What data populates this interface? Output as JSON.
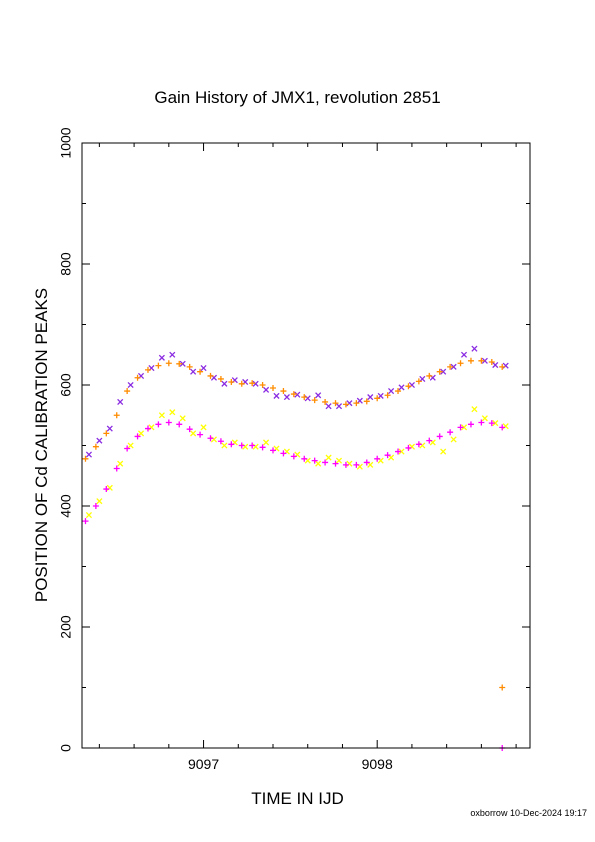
{
  "footer": "oxborrow 10-Dec-2024 19:17",
  "chart_data": {
    "type": "scatter",
    "title": "Gain History of JMX1, revolution 2851",
    "xlabel": "TIME IN IJD",
    "ylabel": "POSITION OF Cd CALIBRATION PEAKS",
    "xlim": [
      9096.3,
      9098.88
    ],
    "ylim": [
      0,
      1000
    ],
    "x_ticks": [
      9097,
      9098
    ],
    "y_ticks": [
      0,
      200,
      400,
      600,
      800,
      1000
    ],
    "grid": false,
    "legend": "none",
    "series": [
      {
        "marker": "x",
        "color": "#8a2be2",
        "x": [
          9096.34,
          9096.4,
          9096.46,
          9096.52,
          9096.58,
          9096.64,
          9096.7,
          9096.76,
          9096.82,
          9096.88,
          9096.94,
          9097.0,
          9097.06,
          9097.12,
          9097.18,
          9097.24,
          9097.3,
          9097.36,
          9097.42,
          9097.48,
          9097.54,
          9097.6,
          9097.66,
          9097.72,
          9097.78,
          9097.84,
          9097.9,
          9097.96,
          9098.02,
          9098.08,
          9098.14,
          9098.2,
          9098.26,
          9098.32,
          9098.38,
          9098.44,
          9098.5,
          9098.56,
          9098.62,
          9098.68,
          9098.74
        ],
        "y": [
          485,
          508,
          528,
          572,
          600,
          615,
          628,
          645,
          650,
          635,
          622,
          628,
          612,
          602,
          608,
          605,
          602,
          592,
          582,
          580,
          584,
          578,
          583,
          565,
          565,
          570,
          574,
          580,
          582,
          590,
          596,
          600,
          610,
          612,
          622,
          630,
          650,
          660,
          640,
          633,
          632
        ]
      },
      {
        "marker": "+",
        "color": "#ff8c00",
        "x": [
          9096.32,
          9096.38,
          9096.44,
          9096.5,
          9096.56,
          9096.62,
          9096.68,
          9096.74,
          9096.8,
          9096.86,
          9096.92,
          9096.98,
          9097.04,
          9097.1,
          9097.16,
          9097.22,
          9097.28,
          9097.34,
          9097.4,
          9097.46,
          9097.52,
          9097.58,
          9097.64,
          9097.7,
          9097.76,
          9097.82,
          9097.88,
          9097.94,
          9098.0,
          9098.06,
          9098.12,
          9098.18,
          9098.24,
          9098.3,
          9098.36,
          9098.42,
          9098.48,
          9098.54,
          9098.6,
          9098.66,
          9098.72
        ],
        "y": [
          478,
          498,
          520,
          550,
          590,
          612,
          625,
          632,
          636,
          635,
          630,
          622,
          615,
          610,
          605,
          602,
          603,
          600,
          595,
          590,
          585,
          580,
          575,
          572,
          570,
          568,
          570,
          573,
          578,
          583,
          590,
          598,
          606,
          615,
          622,
          630,
          636,
          640,
          640,
          638,
          630
        ]
      },
      {
        "marker": "x",
        "color": "#ffff00",
        "x": [
          9096.34,
          9096.4,
          9096.46,
          9096.52,
          9096.58,
          9096.64,
          9096.7,
          9096.76,
          9096.82,
          9096.88,
          9096.94,
          9097.0,
          9097.06,
          9097.12,
          9097.18,
          9097.24,
          9097.3,
          9097.36,
          9097.42,
          9097.48,
          9097.54,
          9097.6,
          9097.66,
          9097.72,
          9097.78,
          9097.84,
          9097.9,
          9097.96,
          9098.02,
          9098.08,
          9098.14,
          9098.2,
          9098.26,
          9098.32,
          9098.38,
          9098.44,
          9098.5,
          9098.56,
          9098.62,
          9098.68,
          9098.74
        ],
        "y": [
          385,
          408,
          430,
          470,
          500,
          520,
          530,
          550,
          555,
          545,
          520,
          530,
          510,
          500,
          505,
          498,
          498,
          505,
          495,
          490,
          485,
          475,
          470,
          480,
          475,
          470,
          465,
          468,
          475,
          480,
          490,
          498,
          500,
          505,
          490,
          510,
          530,
          560,
          545,
          537,
          532
        ]
      },
      {
        "marker": "+",
        "color": "#ff00ff",
        "x": [
          9096.32,
          9096.38,
          9096.44,
          9096.5,
          9096.56,
          9096.62,
          9096.68,
          9096.74,
          9096.8,
          9096.86,
          9096.92,
          9096.98,
          9097.04,
          9097.1,
          9097.16,
          9097.22,
          9097.28,
          9097.34,
          9097.4,
          9097.46,
          9097.52,
          9097.58,
          9097.64,
          9097.7,
          9097.76,
          9097.82,
          9097.88,
          9097.94,
          9098.0,
          9098.06,
          9098.12,
          9098.18,
          9098.24,
          9098.3,
          9098.36,
          9098.42,
          9098.48,
          9098.54,
          9098.6,
          9098.66,
          9098.72
        ],
        "y": [
          375,
          400,
          428,
          462,
          495,
          515,
          528,
          535,
          538,
          535,
          527,
          518,
          512,
          507,
          502,
          500,
          500,
          497,
          492,
          487,
          482,
          478,
          475,
          472,
          470,
          468,
          468,
          472,
          478,
          484,
          490,
          496,
          502,
          508,
          515,
          522,
          530,
          535,
          538,
          537,
          530
        ]
      },
      {
        "marker": "+",
        "color": "#ff8c00",
        "x": [
          9098.72
        ],
        "y": [
          100
        ]
      },
      {
        "marker": "+",
        "color": "#ff00ff",
        "x": [
          9098.72
        ],
        "y": [
          0
        ]
      }
    ]
  }
}
